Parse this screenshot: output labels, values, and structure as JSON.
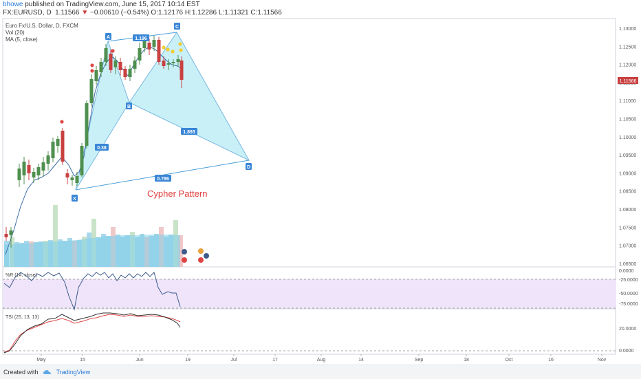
{
  "header": {
    "author": "bhowe",
    "published_text": "published on TradingView.com, June 15, 2017 10:14 EST",
    "symbol": "FX:EURUSD, D",
    "price": "1.11566",
    "change": "−0.00610 (−0.54%)",
    "ohlc": {
      "o_label": "O:",
      "o": "1.12176",
      "h_label": "H:",
      "h": "1.12286",
      "l_label": "L:",
      "l": "1.11321",
      "c_label": "C:",
      "c": "1.11566"
    }
  },
  "legend": {
    "title": "Euro Fx/U.S. Dollar, D, FXCM",
    "vol": "Vol (20)",
    "ma": "MA (5, close)"
  },
  "price_axis": {
    "ticks": [
      "1.13000",
      "1.12500",
      "1.12000",
      "1.11500",
      "1.11000",
      "1.10500",
      "1.10000",
      "1.09500",
      "1.09000",
      "1.08500",
      "1.08000",
      "1.07500",
      "1.07000",
      "1.06500"
    ],
    "last_price": "1.11566"
  },
  "pattern": {
    "points": [
      "X",
      "A",
      "B",
      "C",
      "D"
    ],
    "ratios": [
      "0.38",
      "1.196",
      "1.893",
      "0.786"
    ],
    "title": "Cypher Pattern"
  },
  "wr_panel": {
    "label": "%R (14, close)",
    "ticks": [
      "0.0000",
      "-25.0000",
      "-50.0000",
      "-75.0000"
    ]
  },
  "tsi_panel": {
    "label": "TSI (25, 13, 13)",
    "ticks": [
      "20.0000",
      "0.0000"
    ]
  },
  "time_axis": {
    "labels": [
      "May",
      "15",
      "Jun",
      "19",
      "Jul",
      "17",
      "Aug",
      "14",
      "Sep",
      "18",
      "Oct",
      "16",
      "Nov"
    ]
  },
  "footer": {
    "created_with": "Created with",
    "brand": "TradingView"
  },
  "colors": {
    "bull": "#4f8f4f",
    "bear": "#c94040",
    "pattern_fill": "#b8ecf5",
    "pattern_line": "#4a9fd8",
    "label_box": "#3a86d6",
    "wr_band": "#f0e4fb",
    "tsi_line": "#333333",
    "tsi_signal": "#e04848"
  }
}
